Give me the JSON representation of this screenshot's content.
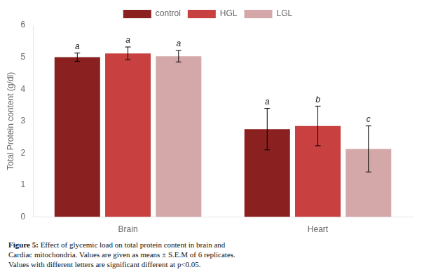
{
  "chart_data": {
    "type": "bar",
    "categories": [
      "Brain",
      "Heart"
    ],
    "series": [
      {
        "name": "control",
        "color": "#8B2020",
        "values": [
          5.0,
          2.75
        ],
        "errors": [
          0.13,
          0.65
        ],
        "letters": [
          "a",
          "a"
        ]
      },
      {
        "name": "HGL",
        "color": "#C84040",
        "values": [
          5.12,
          2.85
        ],
        "errors": [
          0.2,
          0.62
        ],
        "letters": [
          "a",
          "b"
        ]
      },
      {
        "name": "LGL",
        "color": "#D4A8A8",
        "values": [
          5.03,
          2.13
        ],
        "errors": [
          0.18,
          0.72
        ],
        "letters": [
          "a",
          "c"
        ]
      }
    ],
    "ylabel": "Total Protein content (g/dl)",
    "ylim": [
      0,
      6
    ],
    "yticks": [
      0,
      1,
      2,
      3,
      4,
      5,
      6
    ],
    "grid": false,
    "legend": "top",
    "caption": [
      "Figure 5: Effect of glycemic load on total protein content in brain and",
      "Cardiac mitochondria. Values are given as means ± S.E.M of 6 replicates.",
      "Values with different letters are significant different at p<0.05."
    ]
  }
}
